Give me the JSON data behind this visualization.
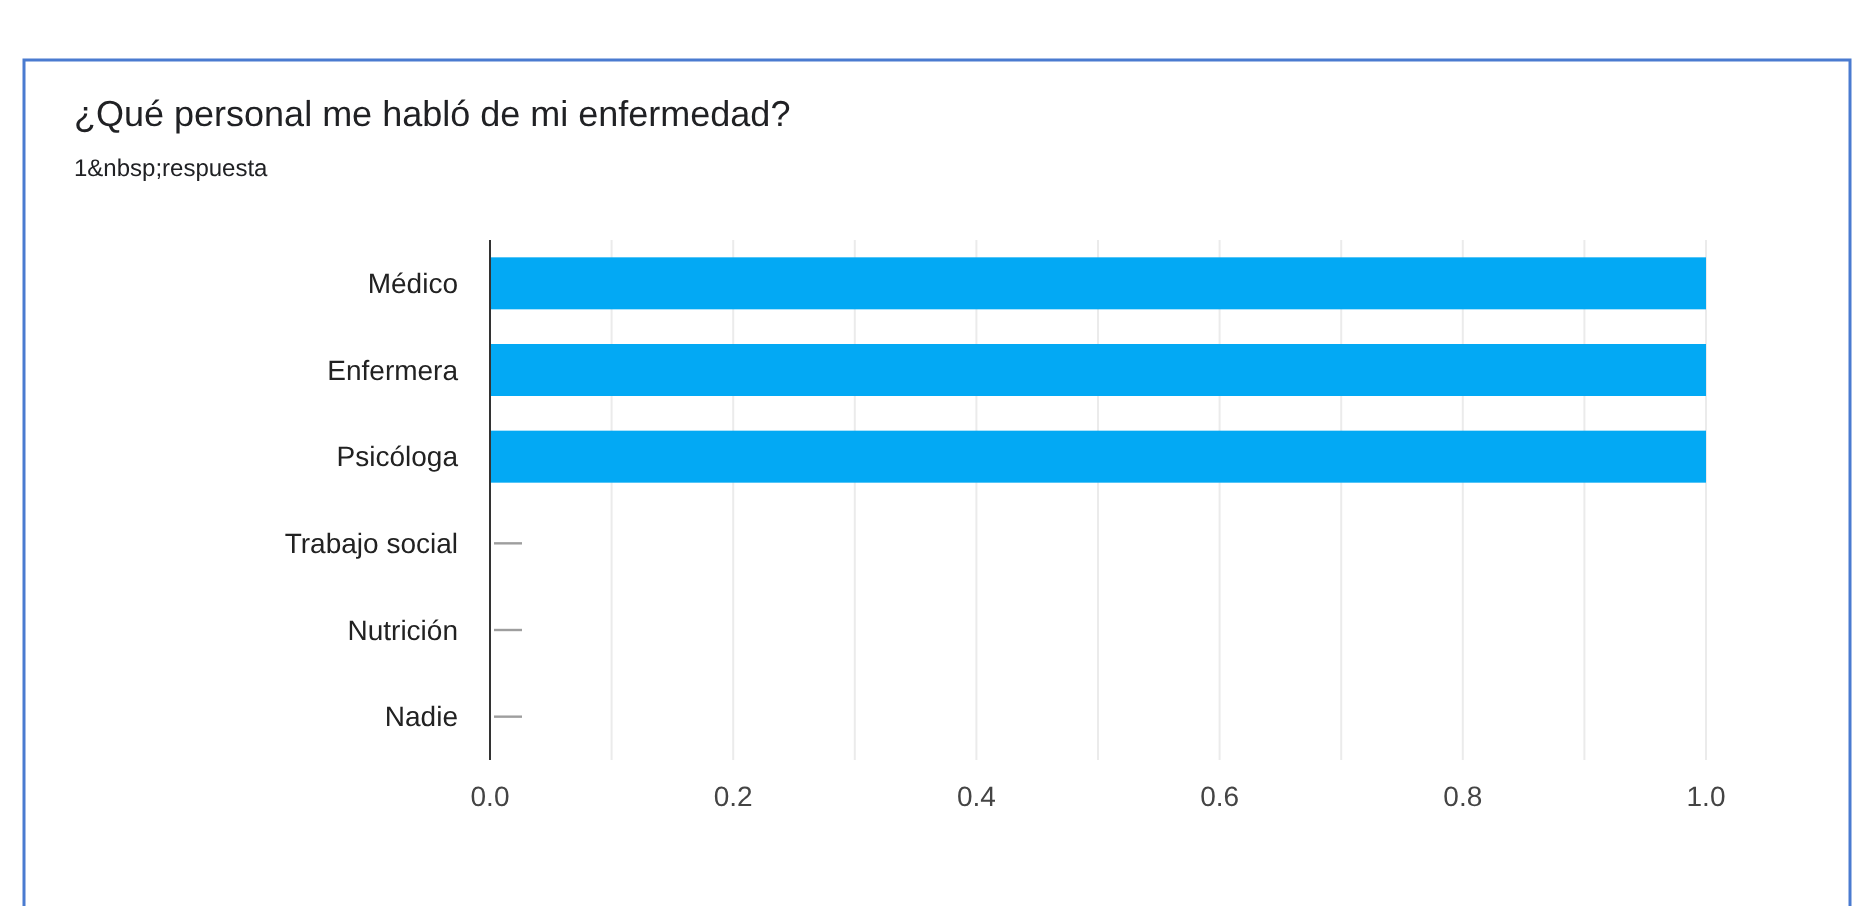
{
  "chart_data": {
    "type": "bar",
    "orientation": "horizontal",
    "title": "¿Qué personal me habló de mi enfermedad?",
    "subtitle": "1&nbsp;respuesta",
    "categories": [
      "Médico",
      "Enfermera",
      "Psicóloga",
      "Trabajo social",
      "Nutrición",
      "Nadie"
    ],
    "values": [
      1,
      1,
      1,
      0,
      0,
      0
    ],
    "color": "#03a9f4",
    "xlim": [
      0,
      1
    ],
    "xticks": [
      {
        "value": 0,
        "label": "0.0"
      },
      {
        "value": 0.1,
        "label": null
      },
      {
        "value": 0.2,
        "label": "0.2"
      },
      {
        "value": 0.3,
        "label": null
      },
      {
        "value": 0.4,
        "label": "0.4"
      },
      {
        "value": 0.5,
        "label": null
      },
      {
        "value": 0.6,
        "label": "0.6"
      },
      {
        "value": 0.7,
        "label": null
      },
      {
        "value": 0.8,
        "label": "0.8"
      },
      {
        "value": 0.9,
        "label": null
      },
      {
        "value": 1,
        "label": "1.0"
      }
    ],
    "grid": "x"
  }
}
